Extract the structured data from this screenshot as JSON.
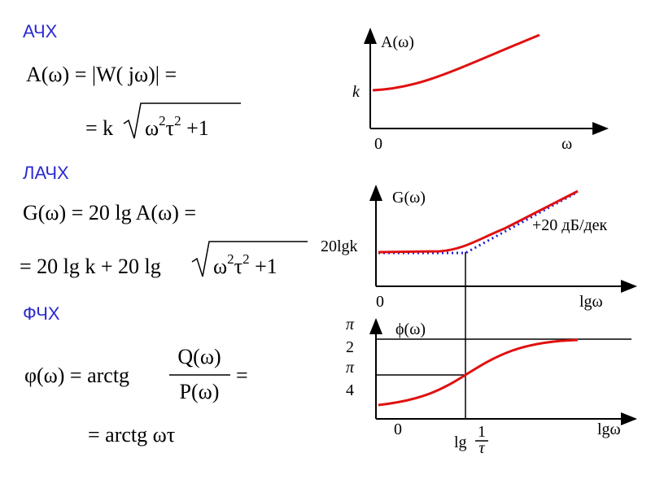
{
  "afc": {
    "heading": "АЧХ",
    "formula_line1": "A(ω) = |W( jω)| =",
    "formula_line2": [
      "= k",
      "ω",
      "2",
      "τ",
      "2",
      " +1"
    ]
  },
  "lafc": {
    "heading": "ЛАЧХ",
    "formula_line1": "G(ω) = 20 lg A(ω) =",
    "formula_line2": [
      "= 20 lg k + 20 lg",
      "ω",
      "2",
      "τ",
      "2",
      " +1"
    ]
  },
  "pfc": {
    "heading": "ФЧХ",
    "formula_line1": [
      "φ(ω) = arctg",
      "Q(ω)",
      "P(ω)",
      "="
    ],
    "formula_line2": "= arctg ωτ"
  },
  "plots": {
    "amplitude": {
      "y_label": "A(ω)",
      "y_mark": "k",
      "origin": "0",
      "x_label": "ω"
    },
    "log_amplitude": {
      "y_label": "G(ω)",
      "y_mark": "20lgk",
      "slope_label": "+20 дБ/дек",
      "origin": "0",
      "x_label": "lgω"
    },
    "phase": {
      "y_label": "ϕ(ω)",
      "y_marks": [
        {
          "numerator": "π",
          "denominator": "2"
        },
        {
          "numerator": "π",
          "denominator": "4"
        }
      ],
      "origin": "0",
      "x_mark": {
        "prefix": "lg",
        "numerator": "1",
        "denominator": "τ"
      },
      "x_label": "lgω"
    }
  }
}
